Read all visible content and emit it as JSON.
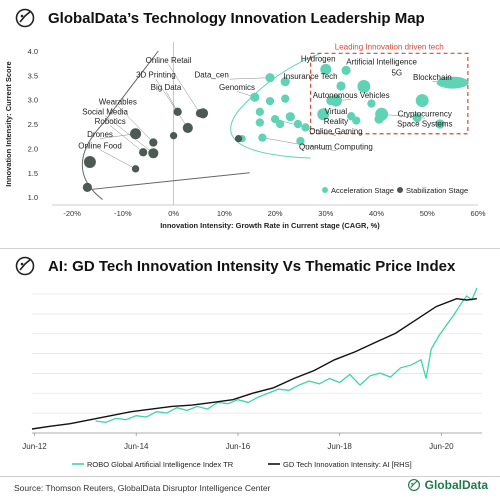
{
  "top_title": "GlobalData’s Technology Innovation Leadership Map",
  "bottom_title": "AI: GD Tech Innovation Intensity Vs Thematic Price Index",
  "source": "Source: Thomson Reuters, GlobalData Disruptor Intelligence Center",
  "brand": "GlobalData",
  "colors": {
    "acceleration": "#5fd3b4",
    "stabilization": "#4d5a54",
    "leading_box": "#d64a3a",
    "robo_line": "#3dd6a8",
    "gd_line": "#111111"
  },
  "chart_data": [
    {
      "type": "scatter",
      "xlabel": "Innovation Intensity: Growth Rate in Current stage (CAGR, %)",
      "ylabel": "Innovation Intensity: Current Score",
      "xlim": [
        -22,
        60
      ],
      "ylim": [
        0.9,
        4.1
      ],
      "x_ticks": [
        "-20%",
        "-10%",
        "0%",
        "10%",
        "20%",
        "30%",
        "40%",
        "50%",
        "60%"
      ],
      "y_ticks": [
        "1.0",
        "1.5",
        "2.0",
        "2.5",
        "3.0",
        "3.5",
        "4.0"
      ],
      "box_title": "Leading Innovation driven tech",
      "legend": [
        "Acceleration Stage",
        "Stabilization Stage"
      ],
      "legend_position": "bottom-right",
      "series": [
        {
          "name": "Acceleration Stage",
          "points": [
            {
              "x": 30,
              "y": 3.62,
              "r": 1.2
            },
            {
              "x": 34,
              "y": 3.6,
              "r": 1.0
            },
            {
              "x": 55,
              "y": 3.35,
              "r": 2.2
            },
            {
              "x": 33,
              "y": 3.28,
              "r": 1.0
            },
            {
              "x": 37.5,
              "y": 3.27,
              "r": 1.4
            },
            {
              "x": 31,
              "y": 2.98,
              "r": 1.0
            },
            {
              "x": 32,
              "y": 2.98,
              "r": 1.3
            },
            {
              "x": 49,
              "y": 2.98,
              "r": 1.4
            },
            {
              "x": 39,
              "y": 2.92,
              "r": 0.9
            },
            {
              "x": 29.5,
              "y": 2.7,
              "r": 1.3
            },
            {
              "x": 35,
              "y": 2.66,
              "r": 0.9
            },
            {
              "x": 41,
              "y": 2.7,
              "r": 1.4
            },
            {
              "x": 26,
              "y": 2.43,
              "r": 0.9
            },
            {
              "x": 36,
              "y": 2.57,
              "r": 0.9
            },
            {
              "x": 40.5,
              "y": 2.6,
              "r": 1.0
            },
            {
              "x": 48,
              "y": 2.63,
              "r": 1.0
            },
            {
              "x": 52.5,
              "y": 2.5,
              "r": 1.0
            },
            {
              "x": 19,
              "y": 3.45,
              "r": 1.0
            },
            {
              "x": 16,
              "y": 3.05,
              "r": 1.0
            },
            {
              "x": 19,
              "y": 2.97,
              "r": 0.9
            },
            {
              "x": 22,
              "y": 3.37,
              "r": 1.0
            },
            {
              "x": 22,
              "y": 3.02,
              "r": 0.9
            },
            {
              "x": 17,
              "y": 2.75,
              "r": 0.9
            },
            {
              "x": 20,
              "y": 2.6,
              "r": 0.9
            },
            {
              "x": 23,
              "y": 2.65,
              "r": 1.0
            },
            {
              "x": 21,
              "y": 2.5,
              "r": 0.9
            },
            {
              "x": 24.5,
              "y": 2.5,
              "r": 0.9
            },
            {
              "x": 17,
              "y": 2.53,
              "r": 0.9
            },
            {
              "x": 13.5,
              "y": 2.2,
              "r": 0.8
            },
            {
              "x": 17.5,
              "y": 2.22,
              "r": 0.9
            },
            {
              "x": 25,
              "y": 2.15,
              "r": 0.9
            }
          ]
        },
        {
          "name": "Stabilization Stage",
          "points": [
            {
              "x": -17,
              "y": 1.2,
              "r": 1.0
            },
            {
              "x": -16.5,
              "y": 1.72,
              "r": 1.3
            },
            {
              "x": -7.5,
              "y": 2.3,
              "r": 1.2
            },
            {
              "x": -6,
              "y": 1.92,
              "r": 0.9
            },
            {
              "x": -4,
              "y": 2.12,
              "r": 0.9
            },
            {
              "x": -4,
              "y": 1.9,
              "r": 1.1
            },
            {
              "x": -7.5,
              "y": 1.58,
              "r": 0.8
            },
            {
              "x": 0,
              "y": 2.26,
              "r": 0.8
            },
            {
              "x": 0.8,
              "y": 2.75,
              "r": 0.9
            },
            {
              "x": 2.8,
              "y": 2.42,
              "r": 1.1
            },
            {
              "x": 5.2,
              "y": 2.72,
              "r": 0.9
            },
            {
              "x": 5.8,
              "y": 2.72,
              "r": 1.1
            },
            {
              "x": 12.8,
              "y": 2.2,
              "r": 0.8
            }
          ]
        }
      ],
      "labels": [
        {
          "text": "Genomics",
          "x": 12.5,
          "y": 3.2
        },
        {
          "text": "Data_cen",
          "x": 7.5,
          "y": 3.45
        },
        {
          "text": "Hydrogen",
          "x": 28.5,
          "y": 3.78
        },
        {
          "text": "Artificial Intelligence",
          "x": 41,
          "y": 3.72
        },
        {
          "text": "Insurance Tech",
          "x": 27,
          "y": 3.42
        },
        {
          "text": "5G",
          "x": 44,
          "y": 3.5
        },
        {
          "text": "Blockchain",
          "x": 51,
          "y": 3.4
        },
        {
          "text": "Autonomous Vehicles",
          "x": 35,
          "y": 3.03
        },
        {
          "text": "Virtual",
          "x": 32,
          "y": 2.71
        },
        {
          "text": "Reality",
          "x": 32,
          "y": 2.5
        },
        {
          "text": "Cryptocurrency",
          "x": 49.5,
          "y": 2.65
        },
        {
          "text": "Space Systems",
          "x": 49.5,
          "y": 2.45
        },
        {
          "text": "Online Gaming",
          "x": 32,
          "y": 2.29
        },
        {
          "text": "Quantum Computing",
          "x": 32,
          "y": 1.98
        },
        {
          "text": "Online Retail",
          "x": -1,
          "y": 3.75
        },
        {
          "text": "3D Printing",
          "x": -3.5,
          "y": 3.45
        },
        {
          "text": "Big Data",
          "x": -1.5,
          "y": 3.2
        },
        {
          "text": "Wearables",
          "x": -11,
          "y": 2.9
        },
        {
          "text": "Social Media",
          "x": -13.5,
          "y": 2.7
        },
        {
          "text": "Robotics",
          "x": -12.5,
          "y": 2.5
        },
        {
          "text": "Drones",
          "x": -14.5,
          "y": 2.23
        },
        {
          "text": "Online Food",
          "x": -14.5,
          "y": 2.0
        }
      ]
    },
    {
      "type": "line",
      "x_ticks": [
        "Jun-12",
        "Jun-14",
        "Jun-16",
        "Jun-18",
        "Jun-20"
      ],
      "xlim": [
        2012.45,
        2021.3
      ],
      "series": [
        {
          "name": "ROBO Global Artificial Intelligence Index TR",
          "x": [
            2013.7,
            2013.9,
            2014.1,
            2014.3,
            2014.5,
            2014.7,
            2014.9,
            2015.1,
            2015.3,
            2015.5,
            2015.7,
            2015.9,
            2016.1,
            2016.3,
            2016.5,
            2016.7,
            2016.9,
            2017.1,
            2017.3,
            2017.5,
            2017.7,
            2017.9,
            2018.1,
            2018.3,
            2018.5,
            2018.7,
            2018.9,
            2019.1,
            2019.3,
            2019.5,
            2019.7,
            2019.9,
            2020.1,
            2020.2,
            2020.3,
            2020.45,
            2020.6,
            2020.75,
            2020.9,
            2021.0,
            2021.1,
            2021.2
          ],
          "values": [
            0.06,
            0.05,
            0.08,
            0.07,
            0.1,
            0.09,
            0.13,
            0.12,
            0.16,
            0.14,
            0.17,
            0.15,
            0.2,
            0.19,
            0.22,
            0.2,
            0.24,
            0.27,
            0.3,
            0.29,
            0.33,
            0.36,
            0.34,
            0.38,
            0.35,
            0.41,
            0.33,
            0.4,
            0.42,
            0.39,
            0.46,
            0.48,
            0.52,
            0.38,
            0.6,
            0.7,
            0.78,
            0.86,
            0.95,
            1.0,
            0.97,
            1.06
          ]
        },
        {
          "name": "GD Tech Innovation Intensity: AI [RHS]",
          "x": [
            2012.45,
            2012.8,
            2013.2,
            2013.6,
            2014.0,
            2014.4,
            2014.8,
            2015.2,
            2015.6,
            2016.0,
            2016.4,
            2016.8,
            2017.2,
            2017.6,
            2018.0,
            2018.4,
            2018.8,
            2019.2,
            2019.6,
            2020.0,
            2020.4,
            2020.8,
            2021.0,
            2021.2
          ],
          "values": [
            0.0,
            0.02,
            0.04,
            0.07,
            0.1,
            0.13,
            0.15,
            0.17,
            0.18,
            0.2,
            0.22,
            0.27,
            0.31,
            0.38,
            0.44,
            0.52,
            0.58,
            0.65,
            0.72,
            0.82,
            0.92,
            0.98,
            0.97,
            0.98
          ]
        }
      ],
      "legend_position": "bottom"
    }
  ]
}
